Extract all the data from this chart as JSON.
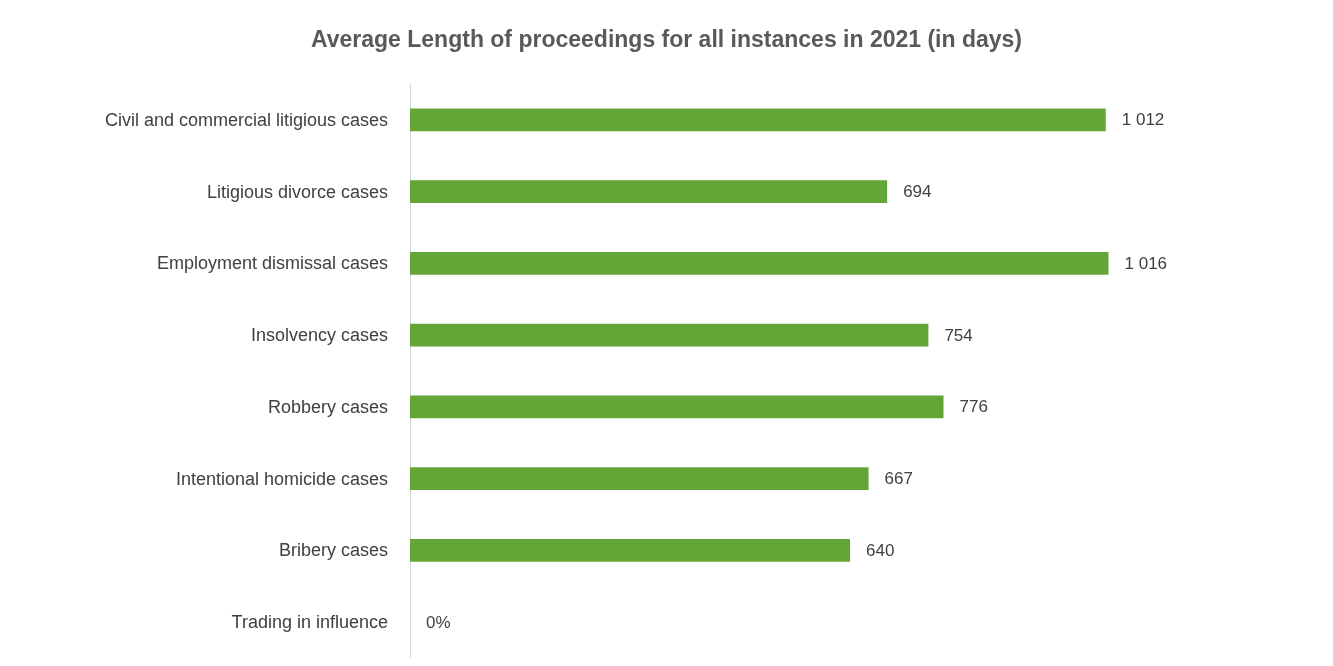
{
  "chart_data": {
    "type": "bar",
    "orientation": "horizontal",
    "title": "Average Length of proceedings for all instances in 2021 (in days)",
    "categories": [
      "Civil and commercial litigious cases",
      "Litigious divorce cases",
      "Employment dismissal cases",
      "Insolvency cases",
      "Robbery cases",
      "Intentional homicide cases",
      "Bribery cases",
      "Trading in influence"
    ],
    "values": [
      1012,
      694,
      1016,
      754,
      776,
      667,
      640,
      0
    ],
    "value_labels": [
      "1 012",
      "694",
      "1 016",
      "754",
      "776",
      "667",
      "640",
      "0%"
    ],
    "color": "#63a537"
  }
}
